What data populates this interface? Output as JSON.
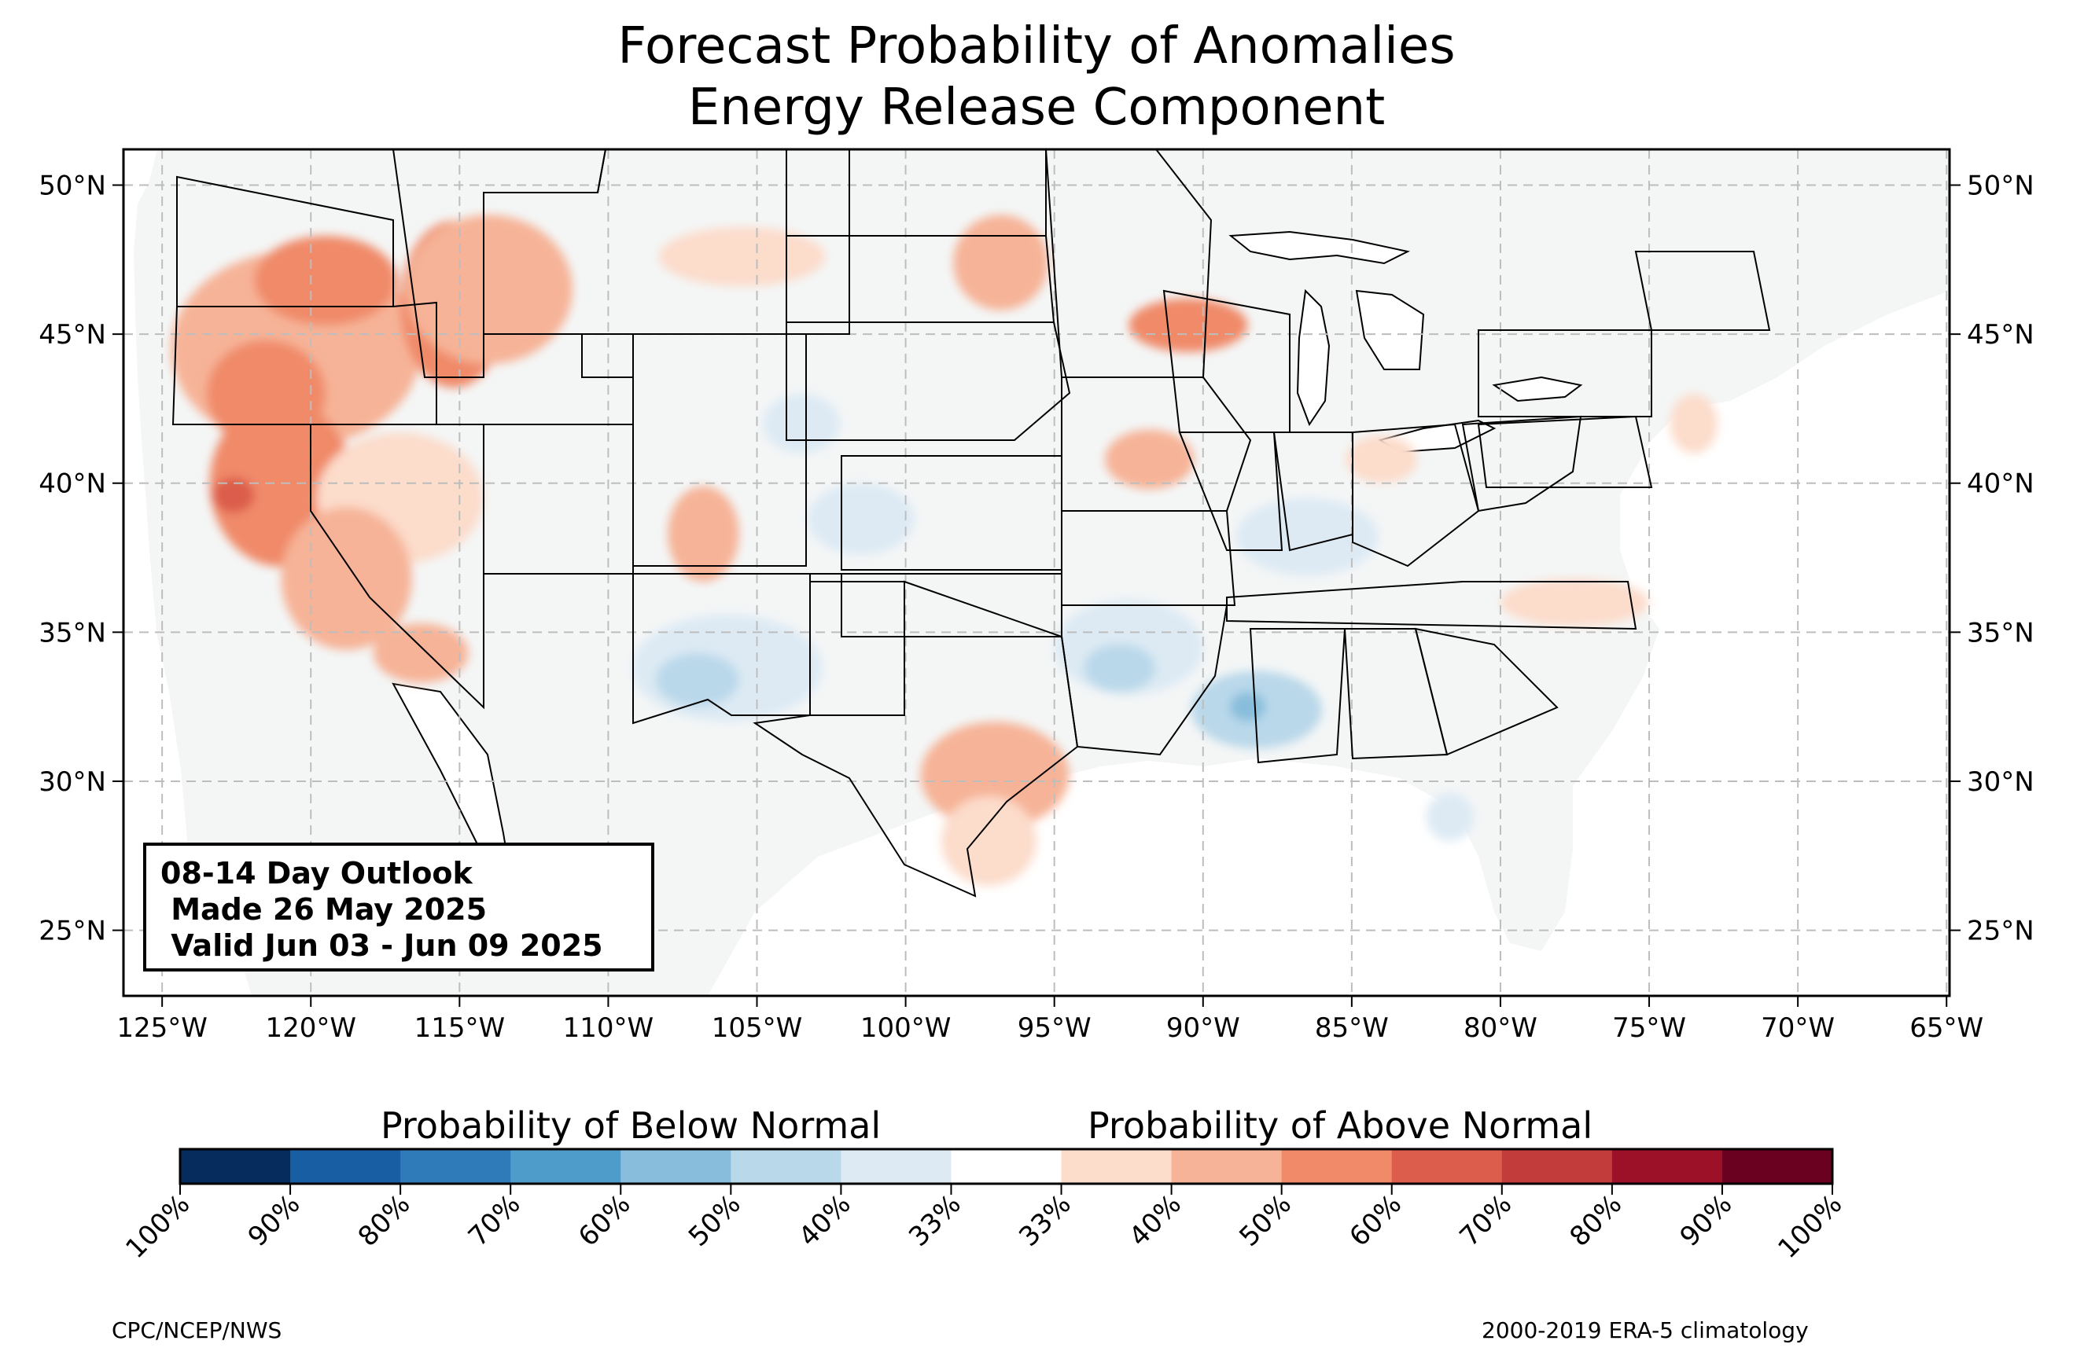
{
  "title": {
    "line1": "Forecast Probability of Anomalies",
    "line2": "Energy Release Component"
  },
  "infobox": {
    "line1": "08-14 Day Outlook",
    "line2": " Made 26 May 2025",
    "line3": " Valid Jun 03 - Jun 09 2025"
  },
  "map": {
    "lon_range": [
      -126.3,
      -64.9
    ],
    "lat_range": [
      22.8,
      51.2
    ],
    "lon_ticks": [
      -125,
      -120,
      -115,
      -110,
      -105,
      -100,
      -95,
      -90,
      -85,
      -80,
      -75,
      -70,
      -65
    ],
    "lon_labels": [
      "125°W",
      "120°W",
      "115°W",
      "110°W",
      "105°W",
      "100°W",
      "95°W",
      "90°W",
      "85°W",
      "80°W",
      "75°W",
      "70°W",
      "65°W"
    ],
    "lat_ticks": [
      25,
      30,
      35,
      40,
      45,
      50
    ],
    "lat_labels": [
      "25°N",
      "30°N",
      "35°N",
      "40°N",
      "45°N",
      "50°N"
    ],
    "gridlines": true,
    "background_color": "#f4f6f6",
    "ocean_color": "#ffffff",
    "above_regions": [
      {
        "lon": -120.5,
        "lat": 44.5,
        "rx": 4.2,
        "ry": 3.3,
        "level": "50%"
      },
      {
        "lon": -119.5,
        "lat": 46.8,
        "rx": 2.4,
        "ry": 1.5,
        "level": "60%"
      },
      {
        "lon": -121.5,
        "lat": 43.0,
        "rx": 2.0,
        "ry": 1.8,
        "level": "60%"
      },
      {
        "lon": -121.0,
        "lat": 40.0,
        "rx": 2.4,
        "ry": 2.8,
        "level": "60%"
      },
      {
        "lon": -122.6,
        "lat": 39.6,
        "rx": 0.7,
        "ry": 0.6,
        "level": "70%"
      },
      {
        "lon": -115.2,
        "lat": 46.0,
        "rx": 1.8,
        "ry": 2.8,
        "level": "60%"
      },
      {
        "lon": -114.0,
        "lat": 46.5,
        "rx": 2.8,
        "ry": 2.5,
        "level": "50%"
      },
      {
        "lon": -117.0,
        "lat": 39.5,
        "rx": 2.8,
        "ry": 2.2,
        "level": "40%"
      },
      {
        "lon": -118.8,
        "lat": 36.8,
        "rx": 2.2,
        "ry": 2.4,
        "level": "50%"
      },
      {
        "lon": -116.3,
        "lat": 34.3,
        "rx": 1.6,
        "ry": 1.0,
        "level": "50%"
      },
      {
        "lon": -106.8,
        "lat": 38.3,
        "rx": 1.2,
        "ry": 1.6,
        "level": "50%"
      },
      {
        "lon": -105.5,
        "lat": 47.6,
        "rx": 2.8,
        "ry": 1.0,
        "level": "40%"
      },
      {
        "lon": -96.8,
        "lat": 47.4,
        "rx": 1.6,
        "ry": 1.6,
        "level": "50%"
      },
      {
        "lon": -90.5,
        "lat": 45.3,
        "rx": 2.0,
        "ry": 0.9,
        "level": "60%"
      },
      {
        "lon": -91.8,
        "lat": 40.8,
        "rx": 1.5,
        "ry": 1.0,
        "level": "50%"
      },
      {
        "lon": -84.0,
        "lat": 40.8,
        "rx": 1.2,
        "ry": 0.8,
        "level": "40%"
      },
      {
        "lon": -97.0,
        "lat": 30.2,
        "rx": 2.5,
        "ry": 1.8,
        "level": "50%"
      },
      {
        "lon": -97.2,
        "lat": 28.0,
        "rx": 1.6,
        "ry": 1.5,
        "level": "40%"
      },
      {
        "lon": -77.5,
        "lat": 36.0,
        "rx": 2.5,
        "ry": 0.8,
        "level": "40%"
      },
      {
        "lon": -73.5,
        "lat": 42.0,
        "rx": 0.8,
        "ry": 1.0,
        "level": "40%"
      }
    ],
    "below_regions": [
      {
        "lon": -106.0,
        "lat": 33.8,
        "rx": 3.2,
        "ry": 1.8,
        "level": "40%"
      },
      {
        "lon": -107.0,
        "lat": 33.4,
        "rx": 1.4,
        "ry": 0.9,
        "level": "50%"
      },
      {
        "lon": -101.5,
        "lat": 38.8,
        "rx": 1.8,
        "ry": 1.2,
        "level": "40%"
      },
      {
        "lon": -103.5,
        "lat": 42.0,
        "rx": 1.3,
        "ry": 1.0,
        "level": "40%"
      },
      {
        "lon": -92.5,
        "lat": 34.5,
        "rx": 2.5,
        "ry": 1.6,
        "level": "40%"
      },
      {
        "lon": -92.8,
        "lat": 33.8,
        "rx": 1.2,
        "ry": 0.8,
        "level": "50%"
      },
      {
        "lon": -88.2,
        "lat": 32.4,
        "rx": 2.2,
        "ry": 1.3,
        "level": "50%"
      },
      {
        "lon": -88.5,
        "lat": 32.5,
        "rx": 0.6,
        "ry": 0.5,
        "level": "60%"
      },
      {
        "lon": -86.5,
        "lat": 38.2,
        "rx": 2.4,
        "ry": 1.3,
        "level": "40%"
      },
      {
        "lon": -81.7,
        "lat": 28.8,
        "rx": 0.8,
        "ry": 0.8,
        "level": "40%"
      }
    ]
  },
  "colorbar": {
    "below_label": "Probability of Below Normal",
    "above_label": "Probability of Above Normal",
    "colors": [
      "#062b5d",
      "#185ea3",
      "#2f7ab8",
      "#4e9cca",
      "#88bedc",
      "#b9d8ea",
      "#ddeaf4",
      "#ffffff",
      "#fcdccb",
      "#f6b397",
      "#f08a69",
      "#dc5d4c",
      "#c13c3a",
      "#9c1127",
      "#6b0120"
    ],
    "tick_labels": [
      "100%",
      "90%",
      "80%",
      "70%",
      "60%",
      "50%",
      "40%",
      "33%",
      "33%",
      "40%",
      "50%",
      "60%",
      "70%",
      "80%",
      "90%",
      "100%"
    ]
  },
  "footer": {
    "left": "CPC/NCEP/NWS",
    "right": "2000-2019 ERA-5 climatology"
  }
}
